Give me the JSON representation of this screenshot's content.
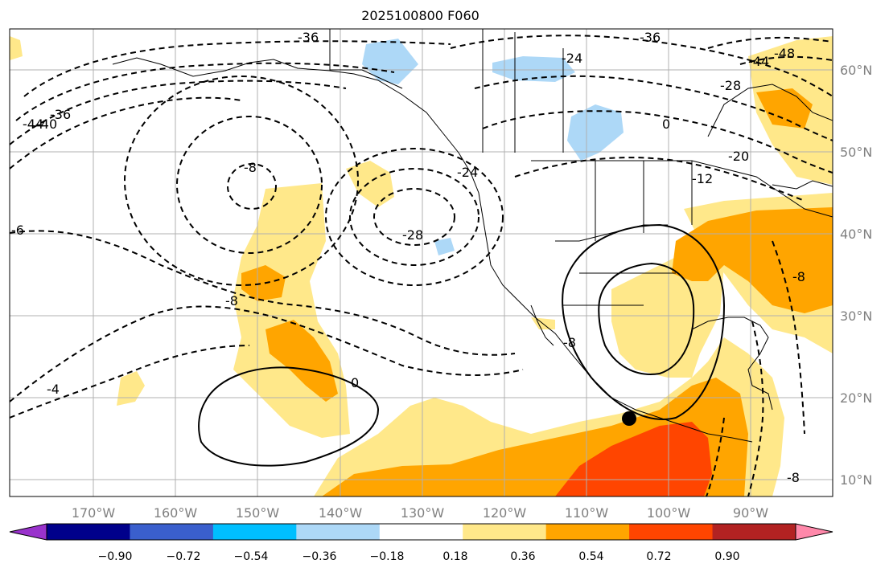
{
  "title": "2025100800 F060",
  "map": {
    "lon_ticks": [
      "170°W",
      "160°W",
      "150°W",
      "140°W",
      "130°W",
      "120°W",
      "110°W",
      "100°W",
      "90°W"
    ],
    "lat_ticks": [
      "60°N",
      "50°N",
      "40°N",
      "30°N",
      "20°N",
      "10°N"
    ],
    "contour_labels": [
      "-36",
      "-36",
      "-24",
      "-24",
      "-28",
      "-36",
      "-40",
      "-44",
      "-44",
      "-48",
      "-28",
      "-20",
      "-12",
      "-8",
      "-8",
      "-6",
      "-4",
      "-8",
      "0",
      "0",
      "-8",
      "-8"
    ],
    "marker": "storm-center-dot"
  },
  "colorbar": {
    "ticks": [
      "−0.90",
      "−0.72",
      "−0.54",
      "−0.36",
      "−0.18",
      "0.18",
      "0.36",
      "0.54",
      "0.72",
      "0.90"
    ],
    "colors": [
      "#9932CC",
      "#00008B",
      "#3A5FCD",
      "#00BFFF",
      "#ADD8F7",
      "#FFFFFF",
      "#FFE88A",
      "#FFA500",
      "#FF4500",
      "#B22222",
      "#FF88AA"
    ]
  }
}
